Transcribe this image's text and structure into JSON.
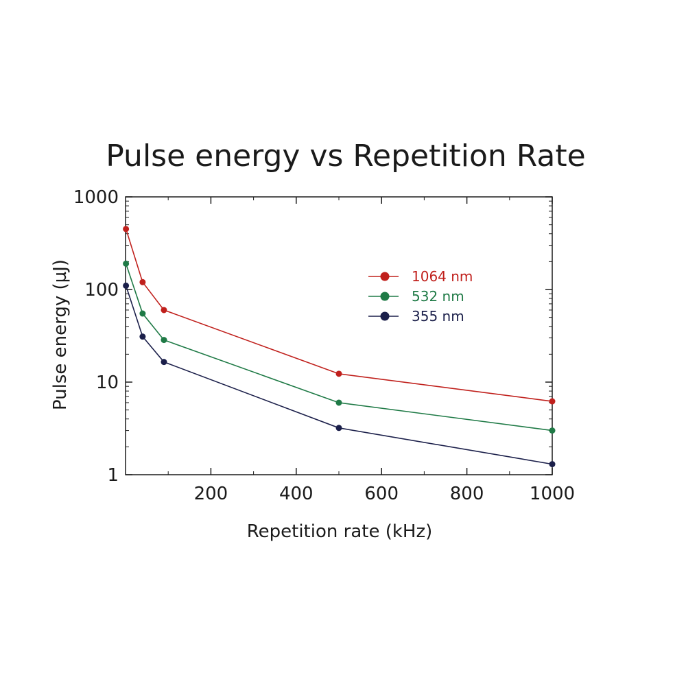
{
  "chart_data": {
    "type": "line",
    "title": "Pulse energy vs Repetition Rate",
    "xlabel": "Repetition rate (kHz)",
    "ylabel": "Pulse energy (µJ)",
    "xlim": [
      0,
      1000
    ],
    "ylim": [
      1,
      1000
    ],
    "yscale": "log",
    "x_ticks": [
      "200",
      "400",
      "600",
      "800",
      "1000"
    ],
    "x_tick_values": [
      200,
      400,
      600,
      800,
      1000
    ],
    "y_ticks": [
      "1",
      "10",
      "100",
      "1000"
    ],
    "y_tick_values": [
      1,
      10,
      100,
      1000
    ],
    "grid": false,
    "legend_position": "upper-right",
    "x": [
      1,
      40,
      90,
      500,
      1000
    ],
    "series": [
      {
        "name": "1064 nm",
        "color": "#c0201c",
        "values": [
          450,
          120,
          60,
          12.3,
          6.2
        ]
      },
      {
        "name": "532 nm",
        "color": "#1f7a46",
        "values": [
          190,
          55,
          28.5,
          6.0,
          3.0
        ]
      },
      {
        "name": "355 nm",
        "color": "#1b1f4a",
        "values": [
          110,
          31,
          16.5,
          3.2,
          1.3
        ]
      }
    ]
  }
}
